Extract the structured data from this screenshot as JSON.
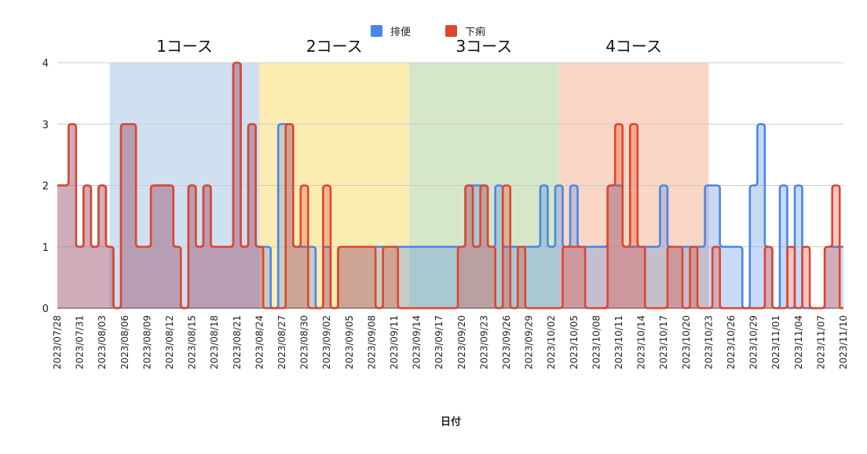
{
  "chart_data": {
    "type": "area",
    "xlabel": "日付",
    "ylabel": "",
    "ylim": [
      0,
      4
    ],
    "yticks": [
      0,
      1,
      2,
      3,
      4
    ],
    "grid": true,
    "legend_position": "top",
    "x": [
      "2023/07/28",
      "2023/07/29",
      "2023/07/30",
      "2023/07/31",
      "2023/08/01",
      "2023/08/02",
      "2023/08/03",
      "2023/08/04",
      "2023/08/05",
      "2023/08/06",
      "2023/08/07",
      "2023/08/08",
      "2023/08/09",
      "2023/08/10",
      "2023/08/11",
      "2023/08/12",
      "2023/08/13",
      "2023/08/14",
      "2023/08/15",
      "2023/08/16",
      "2023/08/17",
      "2023/08/18",
      "2023/08/19",
      "2023/08/20",
      "2023/08/21",
      "2023/08/22",
      "2023/08/23",
      "2023/08/24",
      "2023/08/25",
      "2023/08/26",
      "2023/08/27",
      "2023/08/28",
      "2023/08/29",
      "2023/08/30",
      "2023/08/31",
      "2023/09/01",
      "2023/09/02",
      "2023/09/03",
      "2023/09/04",
      "2023/09/05",
      "2023/09/06",
      "2023/09/07",
      "2023/09/08",
      "2023/09/09",
      "2023/09/10",
      "2023/09/11",
      "2023/09/12",
      "2023/09/13",
      "2023/09/14",
      "2023/09/15",
      "2023/09/16",
      "2023/09/17",
      "2023/09/18",
      "2023/09/19",
      "2023/09/20",
      "2023/09/21",
      "2023/09/22",
      "2023/09/23",
      "2023/09/24",
      "2023/09/25",
      "2023/09/26",
      "2023/09/27",
      "2023/09/28",
      "2023/09/29",
      "2023/09/30",
      "2023/10/01",
      "2023/10/02",
      "2023/10/03",
      "2023/10/04",
      "2023/10/05",
      "2023/10/06",
      "2023/10/07",
      "2023/10/08",
      "2023/10/09",
      "2023/10/10",
      "2023/10/11",
      "2023/10/12",
      "2023/10/13",
      "2023/10/14",
      "2023/10/15",
      "2023/10/16",
      "2023/10/17",
      "2023/10/18",
      "2023/10/19",
      "2023/10/20",
      "2023/10/21",
      "2023/10/22",
      "2023/10/23",
      "2023/10/24",
      "2023/10/25",
      "2023/10/26",
      "2023/10/27",
      "2023/10/28",
      "2023/10/29",
      "2023/10/30",
      "2023/10/31",
      "2023/11/01",
      "2023/11/02",
      "2023/11/03",
      "2023/11/04",
      "2023/11/05",
      "2023/11/06",
      "2023/11/07",
      "2023/11/08",
      "2023/11/09",
      "2023/11/10"
    ],
    "xtick_labels": [
      "2023/07/28",
      "2023/07/31",
      "2023/08/03",
      "2023/08/06",
      "2023/08/09",
      "2023/08/12",
      "2023/08/15",
      "2023/08/18",
      "2023/08/21",
      "2023/08/24",
      "2023/08/27",
      "2023/08/30",
      "2023/09/02",
      "2023/09/05",
      "2023/09/08",
      "2023/09/11",
      "2023/09/14",
      "2023/09/17",
      "2023/09/20",
      "2023/09/23",
      "2023/09/26",
      "2023/09/29",
      "2023/10/02",
      "2023/10/05",
      "2023/10/08",
      "2023/10/11",
      "2023/10/14",
      "2023/10/17",
      "2023/10/20",
      "2023/10/23",
      "2023/10/26",
      "2023/10/29",
      "2023/11/01",
      "2023/11/04",
      "2023/11/07",
      "2023/11/10"
    ],
    "series": [
      {
        "name": "排便",
        "color": "#4a86e8",
        "values": [
          2,
          2,
          3,
          1,
          2,
          1,
          2,
          1,
          0,
          3,
          3,
          1,
          1,
          2,
          2,
          2,
          1,
          0,
          2,
          1,
          2,
          1,
          1,
          1,
          4,
          1,
          3,
          1,
          1,
          0,
          3,
          3,
          1,
          1,
          1,
          0,
          1,
          0,
          1,
          1,
          1,
          1,
          1,
          1,
          1,
          1,
          1,
          1,
          1,
          1,
          1,
          1,
          1,
          1,
          1,
          2,
          2,
          2,
          1,
          2,
          1,
          1,
          1,
          1,
          1,
          2,
          1,
          2,
          1,
          2,
          1,
          1,
          1,
          1,
          2,
          2,
          1,
          1,
          1,
          1,
          1,
          2,
          1,
          1,
          1,
          1,
          1,
          2,
          2,
          1,
          1,
          1,
          0,
          2,
          3,
          1,
          0,
          2,
          0,
          2,
          0,
          0,
          0,
          1,
          1,
          1
        ]
      },
      {
        "name": "下痢",
        "color": "#e0452e",
        "values": [
          2,
          2,
          3,
          1,
          2,
          1,
          2,
          1,
          0,
          3,
          3,
          1,
          1,
          2,
          2,
          2,
          1,
          0,
          2,
          1,
          2,
          1,
          1,
          1,
          4,
          1,
          3,
          1,
          0,
          0,
          0,
          3,
          1,
          2,
          0,
          0,
          2,
          0,
          1,
          1,
          1,
          1,
          1,
          0,
          1,
          1,
          0,
          0,
          0,
          0,
          0,
          0,
          0,
          0,
          1,
          2,
          1,
          2,
          1,
          0,
          2,
          0,
          1,
          0,
          0,
          0,
          0,
          0,
          1,
          1,
          1,
          0,
          0,
          0,
          2,
          3,
          1,
          3,
          1,
          0,
          0,
          0,
          1,
          1,
          0,
          1,
          0,
          0,
          1,
          0,
          0,
          0,
          0,
          0,
          0,
          1,
          0,
          0,
          1,
          0,
          1,
          0,
          0,
          1,
          2,
          0
        ]
      }
    ],
    "bands": [
      {
        "label": "1コース",
        "from": "2023/08/04",
        "to": "2023/08/24",
        "color": "#cfe0f1"
      },
      {
        "label": "2コース",
        "from": "2023/08/24",
        "to": "2023/09/13",
        "color": "#fcecb2"
      },
      {
        "label": "3コース",
        "from": "2023/09/13",
        "to": "2023/10/03",
        "color": "#d5e6c9"
      },
      {
        "label": "4コース",
        "from": "2023/10/03",
        "to": "2023/10/23",
        "color": "#f9d7c4"
      }
    ]
  }
}
